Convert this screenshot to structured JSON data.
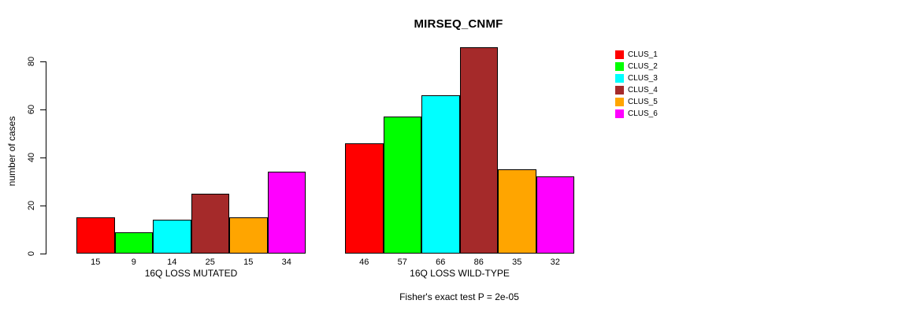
{
  "chart_data": {
    "type": "bar",
    "title": "MIRSEQ_CNMF",
    "ylabel": "number of cases",
    "xlabel": "",
    "yticks": [
      0,
      20,
      40,
      60,
      80
    ],
    "ylim": [
      0,
      86
    ],
    "grid": false,
    "legend_position": "right",
    "annotation": "Fisher's exact test P = 2e-05",
    "categories": [
      "16Q LOSS MUTATED",
      "16Q LOSS WILD-TYPE"
    ],
    "series": [
      {
        "name": "CLUS_1",
        "color": "#FF0000",
        "values": [
          15,
          46
        ]
      },
      {
        "name": "CLUS_2",
        "color": "#00FF00",
        "values": [
          9,
          57
        ]
      },
      {
        "name": "CLUS_3",
        "color": "#00FFFF",
        "values": [
          14,
          66
        ]
      },
      {
        "name": "CLUS_4",
        "color": "#A52A2A",
        "values": [
          25,
          86
        ]
      },
      {
        "name": "CLUS_5",
        "color": "#FFA500",
        "values": [
          15,
          35
        ]
      },
      {
        "name": "CLUS_6",
        "color": "#FF00FF",
        "values": [
          34,
          32
        ]
      }
    ],
    "bar_value_labels": {
      "16Q LOSS MUTATED": [
        15,
        9,
        14,
        25,
        15,
        34
      ],
      "16Q LOSS WILD-TYPE": [
        46,
        57,
        66,
        86,
        35,
        32
      ]
    }
  }
}
